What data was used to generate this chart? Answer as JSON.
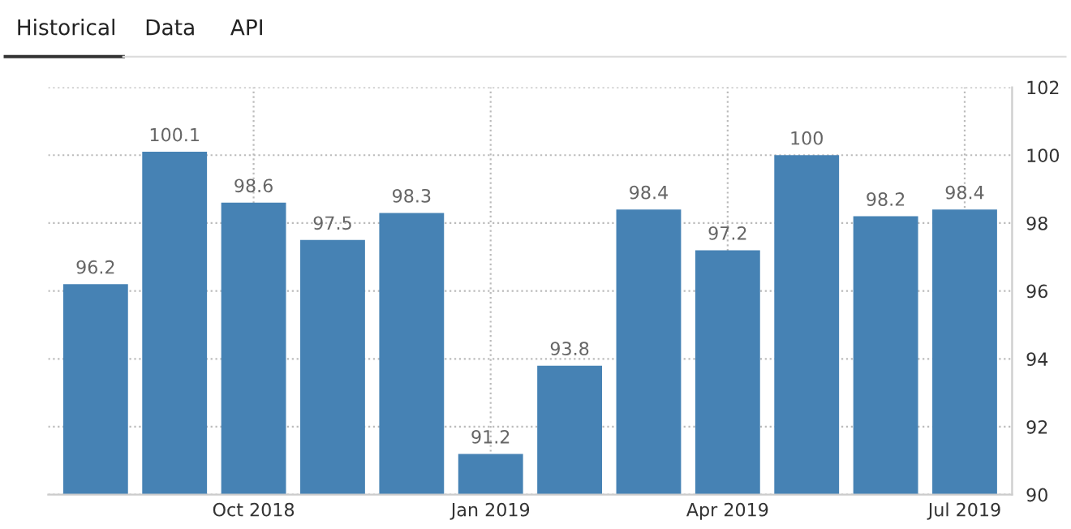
{
  "chart_data": {
    "type": "bar",
    "annotations": [
      "Historical",
      "Data",
      "API"
    ],
    "categories": [
      null,
      null,
      "Oct 2018",
      null,
      null,
      "Jan 2019",
      null,
      null,
      "Apr 2019",
      null,
      null,
      "Jul 2019"
    ],
    "values": [
      96.2,
      100.1,
      98.6,
      97.5,
      98.3,
      91.2,
      93.8,
      98.4,
      97.2,
      100,
      98.2,
      98.4
    ],
    "color": "#4682b4",
    "data_labels": true,
    "ylim": [
      90,
      102
    ],
    "yticks": [
      90,
      92,
      94,
      96,
      98,
      100,
      102
    ],
    "grid": true
  }
}
